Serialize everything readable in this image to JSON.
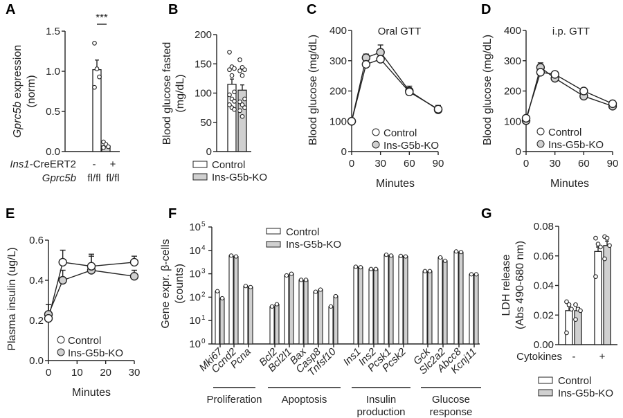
{
  "legend": {
    "control": "Control",
    "ko": "Ins-G5b-KO"
  },
  "colors": {
    "control": "#ffffff",
    "ko": "#d0d0d0",
    "stroke": "#222222"
  },
  "chart_data": [
    {
      "id": "A",
      "panel_label": "A",
      "type": "bar",
      "ylabel_italic": "Gprc5b",
      "ylabel_rest": " expression",
      "ylabel2": "(norm)",
      "ylim": [
        0,
        1.5
      ],
      "yticks": [
        0.0,
        0.5,
        1.0,
        1.5
      ],
      "ytick_labels": [
        "0.0",
        "0.5",
        "1.0",
        "1.5"
      ],
      "significance": "***",
      "row1_label_italic": "Ins1",
      "row1_label_rest": "-CreERT2",
      "row1_values": [
        "-",
        "+"
      ],
      "row2_label": "Gprc5b",
      "row2_values": [
        "fl/fl",
        "fl/fl"
      ],
      "bars": [
        {
          "group": "control",
          "mean": 1.02,
          "sem": 0.12,
          "points": [
            1.35,
            1.03,
            0.93,
            0.8
          ]
        },
        {
          "group": "ko",
          "mean": 0.07,
          "sem": 0.02,
          "points": [
            0.12,
            0.09,
            0.06,
            0.05
          ]
        }
      ]
    },
    {
      "id": "B",
      "panel_label": "B",
      "type": "bar",
      "ylabel": "Blood glucose fasted",
      "ylabel2": "(mg/dL)",
      "ylim": [
        0,
        200
      ],
      "yticks": [
        0,
        50,
        100,
        150,
        200
      ],
      "ytick_labels": [
        "0",
        "50",
        "100",
        "150",
        "200"
      ],
      "bars": [
        {
          "group": "control",
          "mean": 115,
          "sem": 9,
          "points": [
            170,
            145,
            142,
            140,
            130,
            102,
            97,
            90,
            86,
            80,
            75,
            72
          ]
        },
        {
          "group": "ko",
          "mean": 105,
          "sem": 9,
          "points": [
            157,
            144,
            140,
            138,
            130,
            90,
            85,
            80,
            75,
            70,
            60
          ]
        }
      ]
    },
    {
      "id": "C",
      "panel_label": "C",
      "type": "line",
      "title": "Oral GTT",
      "ylabel": "Blood glucose (mg/dL)",
      "xlabel": "Minutes",
      "xlim": [
        0,
        90
      ],
      "ylim": [
        0,
        400
      ],
      "xticks": [
        0,
        30,
        60,
        90
      ],
      "yticks": [
        0,
        100,
        200,
        300,
        400
      ],
      "x": [
        0,
        15,
        30,
        60,
        90
      ],
      "series": [
        {
          "name": "Control",
          "group": "control",
          "values": [
            100,
            288,
            305,
            197,
            140
          ],
          "sem": [
            3,
            8,
            14,
            12,
            12
          ]
        },
        {
          "name": "Ins-G5b-KO",
          "group": "ko",
          "values": [
            100,
            310,
            328,
            200,
            138
          ],
          "sem": [
            3,
            12,
            24,
            16,
            14
          ]
        }
      ]
    },
    {
      "id": "D",
      "panel_label": "D",
      "type": "line",
      "title": "i.p. GTT",
      "ylabel": "Blood glucose (mg/dL)",
      "xlabel": "Minutes",
      "xlim": [
        0,
        90
      ],
      "ylim": [
        0,
        400
      ],
      "xticks": [
        0,
        30,
        60,
        90
      ],
      "yticks": [
        0,
        100,
        200,
        300,
        400
      ],
      "x": [
        0,
        15,
        30,
        60,
        90
      ],
      "series": [
        {
          "name": "Control",
          "group": "control",
          "values": [
            110,
            262,
            255,
            200,
            158
          ],
          "sem": [
            3,
            8,
            6,
            6,
            5
          ]
        },
        {
          "name": "Ins-G5b-KO",
          "group": "ko",
          "values": [
            102,
            278,
            242,
            183,
            150
          ],
          "sem": [
            3,
            15,
            6,
            6,
            5
          ]
        }
      ]
    },
    {
      "id": "E",
      "panel_label": "E",
      "type": "line",
      "ylabel": "Plasma insulin (ug/L)",
      "xlabel": "Minutes",
      "xlim": [
        0,
        30
      ],
      "ylim": [
        0,
        0.6
      ],
      "xticks": [
        0,
        10,
        20,
        30
      ],
      "yticks": [
        0.0,
        0.2,
        0.4,
        0.6
      ],
      "ytick_labels": [
        "0.0",
        "0.2",
        "0.4",
        "0.6"
      ],
      "x": [
        0,
        5,
        15,
        30
      ],
      "series": [
        {
          "name": "Control",
          "group": "control",
          "values": [
            0.21,
            0.49,
            0.47,
            0.49
          ],
          "sem": [
            0.07,
            0.06,
            0.06,
            0.03
          ]
        },
        {
          "name": "Ins-G5b-KO",
          "group": "ko",
          "values": [
            0.23,
            0.4,
            0.45,
            0.42
          ],
          "sem": [
            0.05,
            0.05,
            0.07,
            0.03
          ]
        }
      ]
    },
    {
      "id": "F",
      "panel_label": "F",
      "type": "bar",
      "scale": "log",
      "ylabel": "Gene expr. β-cells",
      "ylabel2": "(counts)",
      "ylim": [
        1,
        100000
      ],
      "ytick_exponents": [
        "0",
        "1",
        "2",
        "3",
        "4",
        "5"
      ],
      "categories": [
        "Mki67",
        "Ccnd2",
        "Pcna",
        "Bcl2",
        "Bcl2l1",
        "Bax",
        "Casp8",
        "Tnfsf10",
        "Ins1",
        "Ins2",
        "Pcsk1",
        "Pcsk2",
        "Gck",
        "Slc2a2",
        "Abcc8",
        "Kcnj11"
      ],
      "groups": [
        {
          "label": "Proliferation",
          "members": 3
        },
        {
          "label": "Apoptosis",
          "members": 5
        },
        {
          "label": "Insulin production",
          "members": 4
        },
        {
          "label": "Glucose response",
          "members": 4
        }
      ],
      "series": [
        {
          "name": "Control",
          "group": "control",
          "values": [
            180,
            6000,
            300,
            40,
            850,
            550,
            170,
            40,
            2000,
            1600,
            6500,
            5800,
            1300,
            5000,
            9000,
            950
          ]
        },
        {
          "name": "Ins-G5b-KO",
          "group": "ko",
          "values": [
            90,
            5500,
            270,
            50,
            1000,
            550,
            210,
            110,
            1900,
            1600,
            6000,
            5500,
            1300,
            3600,
            8500,
            950
          ]
        }
      ]
    },
    {
      "id": "G",
      "panel_label": "G",
      "type": "bar",
      "ylabel": "LDH release",
      "ylabel2": "(Abs 490-680 nm)",
      "ylim": [
        0,
        0.08
      ],
      "yticks": [
        0,
        0.02,
        0.04,
        0.06,
        0.08
      ],
      "ytick_labels": [
        "0.00",
        "0.02",
        "0.04",
        "0.06",
        "0.08"
      ],
      "xrow_label": "Cytokines",
      "xrow_values": [
        "-",
        "+"
      ],
      "bars": [
        {
          "group": "control",
          "mean": 0.023,
          "sem": 0.003,
          "points": [
            0.029,
            0.027,
            0.024,
            0.008
          ]
        },
        {
          "group": "ko",
          "mean": 0.023,
          "sem": 0.002,
          "points": [
            0.027,
            0.024,
            0.023,
            0.017
          ]
        },
        {
          "group": "control",
          "mean": 0.063,
          "sem": 0.003,
          "points": [
            0.072,
            0.068,
            0.066,
            0.046
          ]
        },
        {
          "group": "ko",
          "mean": 0.067,
          "sem": 0.003,
          "points": [
            0.073,
            0.072,
            0.067,
            0.058
          ]
        }
      ]
    }
  ]
}
